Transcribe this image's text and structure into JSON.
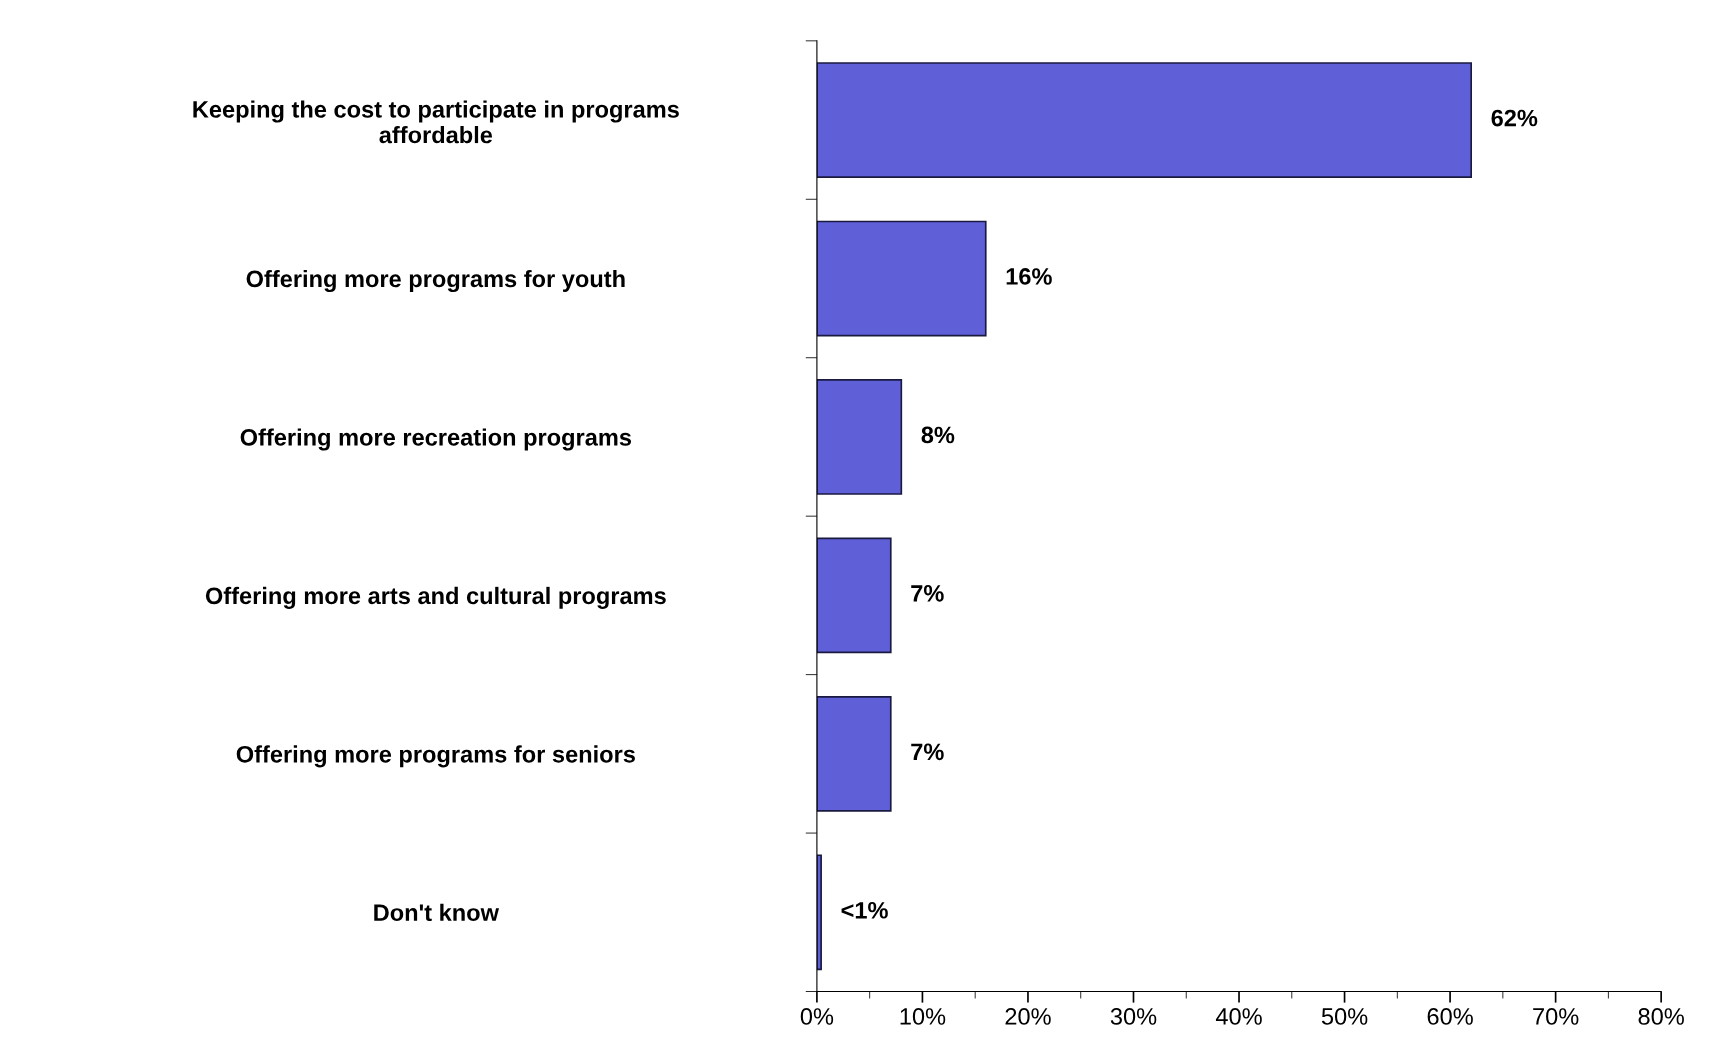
{
  "chart_data": {
    "type": "bar",
    "orientation": "horizontal",
    "categories": [
      "Keeping the cost to participate in programs\naffordable",
      "Offering more programs for youth",
      "Offering more recreation programs",
      "Offering more arts and cultural programs",
      "Offering more programs for seniors",
      "Don't know"
    ],
    "values": [
      62,
      16,
      8,
      7,
      7,
      0.4
    ],
    "value_labels": [
      "62%",
      "16%",
      "8%",
      "7%",
      "7%",
      "<1%"
    ],
    "color": "#5f5fd8",
    "xlim": [
      0,
      80
    ],
    "xticks": [
      {
        "value": 0,
        "label": "0%"
      },
      {
        "value": 10,
        "label": "10%"
      },
      {
        "value": 20,
        "label": "20%"
      },
      {
        "value": 30,
        "label": "30%"
      },
      {
        "value": 40,
        "label": "40%"
      },
      {
        "value": 50,
        "label": "50%"
      },
      {
        "value": 60,
        "label": "60%"
      },
      {
        "value": 70,
        "label": "70%"
      },
      {
        "value": 80,
        "label": "80%"
      }
    ],
    "grid": false,
    "legend": false
  }
}
